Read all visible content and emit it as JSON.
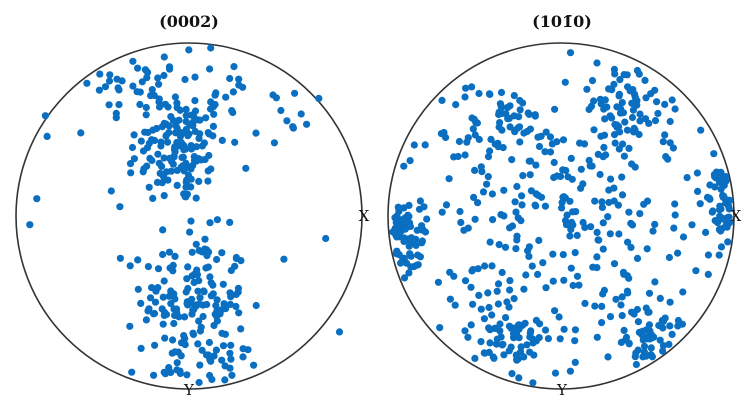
{
  "chart_data": [
    {
      "type": "scatter",
      "title": "(0002)",
      "projection": "pole figure, points in unit-disc coordinates",
      "axis_labels": {
        "x": "X",
        "y": "Y"
      },
      "color": "#0a6fc0",
      "clusters": [
        {
          "cx": -0.06,
          "cy": 0.4,
          "sx": 0.14,
          "sy": 0.17,
          "n": 140
        },
        {
          "cx": 0.03,
          "cy": -0.48,
          "sx": 0.15,
          "sy": 0.19,
          "n": 140
        },
        {
          "cx": -0.3,
          "cy": 0.8,
          "sx": 0.16,
          "sy": 0.1,
          "n": 35
        },
        {
          "cx": 0.3,
          "cy": 0.7,
          "sx": 0.2,
          "sy": 0.15,
          "n": 30
        },
        {
          "cx": 0.05,
          "cy": -0.88,
          "sx": 0.22,
          "sy": 0.08,
          "n": 35
        },
        {
          "cx": -0.15,
          "cy": 0.0,
          "sx": 0.25,
          "sy": 0.22,
          "n": 15
        }
      ],
      "extra_points": [
        [
          -0.88,
          0.1
        ],
        [
          -0.92,
          -0.05
        ],
        [
          -0.82,
          0.46
        ],
        [
          -0.83,
          0.58
        ],
        [
          0.79,
          -0.13
        ],
        [
          0.87,
          -0.67
        ],
        [
          0.68,
          0.53
        ],
        [
          0.75,
          0.68
        ]
      ]
    },
    {
      "type": "scatter",
      "title": "(10Ā1̄0)",
      "title_text": "(101̄0)",
      "projection": "pole figure, points in unit-disc coordinates",
      "axis_labels": {
        "x": "X",
        "y": "Y"
      },
      "color": "#0a6fc0",
      "clusters": [
        {
          "cx": -0.92,
          "cy": -0.1,
          "sx": 0.07,
          "sy": 0.11,
          "n": 70
        },
        {
          "cx": 0.95,
          "cy": 0.07,
          "sx": 0.05,
          "sy": 0.12,
          "n": 55
        },
        {
          "cx": -0.38,
          "cy": 0.5,
          "sx": 0.15,
          "sy": 0.14,
          "n": 60
        },
        {
          "cx": 0.4,
          "cy": 0.62,
          "sx": 0.13,
          "sy": 0.13,
          "n": 60
        },
        {
          "cx": -0.32,
          "cy": -0.7,
          "sx": 0.14,
          "sy": 0.12,
          "n": 70
        },
        {
          "cx": 0.48,
          "cy": -0.67,
          "sx": 0.11,
          "sy": 0.12,
          "n": 60
        },
        {
          "cx": 0.0,
          "cy": 0.0,
          "sx": 0.5,
          "sy": 0.45,
          "n": 260
        }
      ],
      "extra_points": []
    }
  ]
}
